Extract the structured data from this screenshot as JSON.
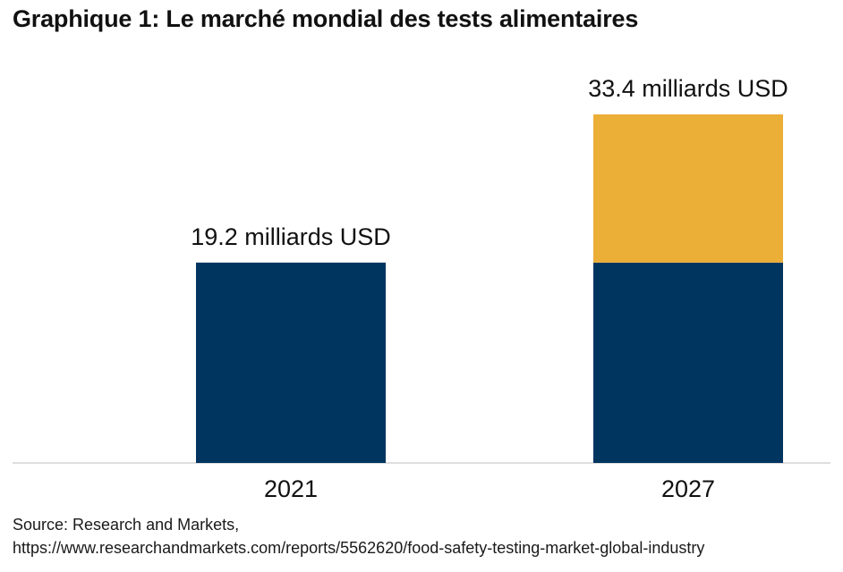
{
  "title": "Graphique 1: Le marché mondial des tests alimentaires",
  "chart_data": {
    "type": "bar",
    "stacked": true,
    "categories": [
      "2021",
      "2027"
    ],
    "series": [
      {
        "color": "#003560",
        "values": [
          19.2,
          19.2
        ]
      },
      {
        "color": "#ebae37",
        "values": [
          0,
          14.2
        ]
      }
    ],
    "totals": [
      19.2,
      33.4
    ],
    "data_labels": [
      "19.2 milliards USD",
      "33.4 milliards USD"
    ],
    "ylim": [
      0,
      33.4
    ],
    "grid": false,
    "legend": "none"
  },
  "source": {
    "line1": "Source: Research and Markets,",
    "line2": "https://www.researchandmarkets.com/reports/5562620/food-safety-testing-market-global-industry"
  }
}
